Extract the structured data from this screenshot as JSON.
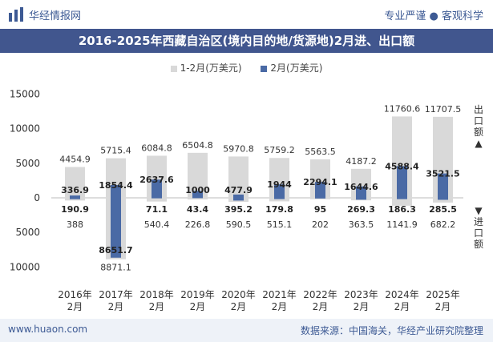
{
  "header": {
    "brand": "华经情报网",
    "slogan": "专业严谨 ● 客观科学"
  },
  "chart_data": {
    "type": "bar",
    "title": "2016-2025年西藏自治区(境内目的地/货源地)2月进、出口额",
    "categories": [
      "2016年\n2月",
      "2017年\n2月",
      "2018年\n2月",
      "2019年\n2月",
      "2020年\n2月",
      "2021年\n2月",
      "2022年\n2月",
      "2023年\n2月",
      "2024年\n2月",
      "2025年\n2月"
    ],
    "ylim": [
      -10000,
      15000
    ],
    "yticks": [
      15000,
      10000,
      5000,
      0,
      -5000,
      -10000
    ],
    "ytick_labels": [
      "15000",
      "10000",
      "5000",
      "0",
      "5000",
      "10000"
    ],
    "series": [
      {
        "name": "1-2月(万美元)",
        "color": "#d9d9d9",
        "export": [
          4454.9,
          5715.4,
          6084.8,
          6504.8,
          5970.8,
          5759.2,
          5563.5,
          4187.2,
          11760.6,
          11707.5
        ],
        "import": [
          388,
          8871.1,
          540.4,
          226.8,
          590.5,
          515.1,
          202,
          363.5,
          1141.9,
          682.2
        ]
      },
      {
        "name": "2月(万美元)",
        "color": "#4a6aa5",
        "export": [
          336.9,
          1854.4,
          2637.6,
          1000,
          477.9,
          1944,
          2294.1,
          1644.6,
          4588.4,
          3521.5
        ],
        "import": [
          190.9,
          8651.7,
          71.1,
          43.4,
          395.2,
          179.8,
          95,
          269.3,
          186.3,
          285.5
        ]
      }
    ],
    "legend_position": "top",
    "side_labels": {
      "export": "出口额",
      "import": "进口额",
      "up_arrow": "▲",
      "down_arrow": "▼"
    }
  },
  "footer": {
    "website": "www.huaon.com",
    "source": "数据来源：中国海关，华经产业研究院整理"
  },
  "colors": {
    "title_band": "#41568e",
    "brand": "#3d5a94"
  }
}
